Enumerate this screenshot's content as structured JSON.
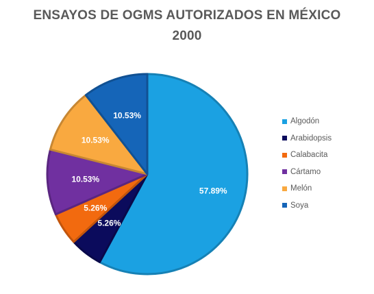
{
  "chart_data": {
    "type": "pie",
    "title_line1": "ENSAYOS DE OGMS AUTORIZADOS EN MÉXICO",
    "title_line2": "2000",
    "legend_position": "right",
    "slices": [
      {
        "label": "Algodón",
        "value": 57.89,
        "display": "57.89%",
        "color": "#1ba1e2"
      },
      {
        "label": "Arabidopsis",
        "value": 5.26,
        "display": "5.26%",
        "color": "#0b0b5c"
      },
      {
        "label": "Calabacita",
        "value": 5.26,
        "display": "5.26%",
        "color": "#f26a0f"
      },
      {
        "label": "Cártamo",
        "value": 10.53,
        "display": "10.53%",
        "color": "#7030a0"
      },
      {
        "label": "Melón",
        "value": 10.53,
        "display": "10.53%",
        "color": "#f9a940"
      },
      {
        "label": "Soya",
        "value": 10.53,
        "display": "10.53%",
        "color": "#1565b8"
      }
    ]
  }
}
